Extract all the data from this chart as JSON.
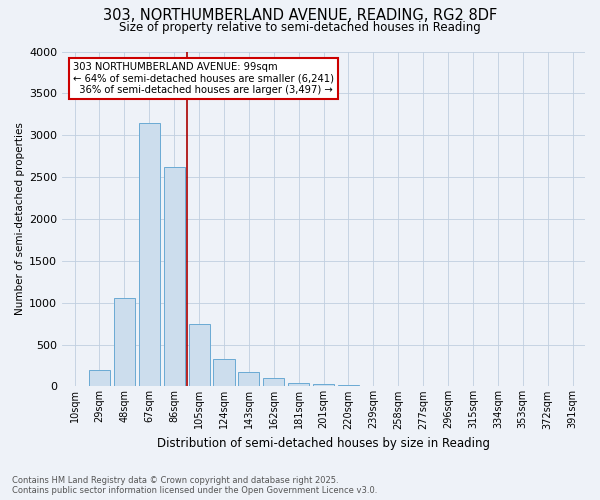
{
  "title_line1": "303, NORTHUMBERLAND AVENUE, READING, RG2 8DF",
  "title_line2": "Size of property relative to semi-detached houses in Reading",
  "xlabel": "Distribution of semi-detached houses by size in Reading",
  "ylabel": "Number of semi-detached properties",
  "categories": [
    "10sqm",
    "29sqm",
    "48sqm",
    "67sqm",
    "86sqm",
    "105sqm",
    "124sqm",
    "143sqm",
    "162sqm",
    "181sqm",
    "201sqm",
    "220sqm",
    "239sqm",
    "258sqm",
    "277sqm",
    "296sqm",
    "315sqm",
    "334sqm",
    "353sqm",
    "372sqm",
    "391sqm"
  ],
  "values": [
    10,
    200,
    1050,
    3150,
    2625,
    750,
    325,
    175,
    100,
    45,
    30,
    15,
    10,
    5,
    3,
    2,
    1,
    1,
    0,
    0,
    0
  ],
  "bar_color": "#ccdded",
  "bar_edge_color": "#6aaad4",
  "red_line_color": "#aa0000",
  "annotation_box_color": "#ffffff",
  "annotation_box_edge": "#cc0000",
  "smaller_pct": "64%",
  "smaller_count": "6,241",
  "larger_pct": "36%",
  "larger_count": "3,497",
  "ylim": [
    0,
    4000
  ],
  "yticks": [
    0,
    500,
    1000,
    1500,
    2000,
    2500,
    3000,
    3500,
    4000
  ],
  "footnote": "Contains HM Land Registry data © Crown copyright and database right 2025.\nContains public sector information licensed under the Open Government Licence v3.0.",
  "background_color": "#eef2f8"
}
